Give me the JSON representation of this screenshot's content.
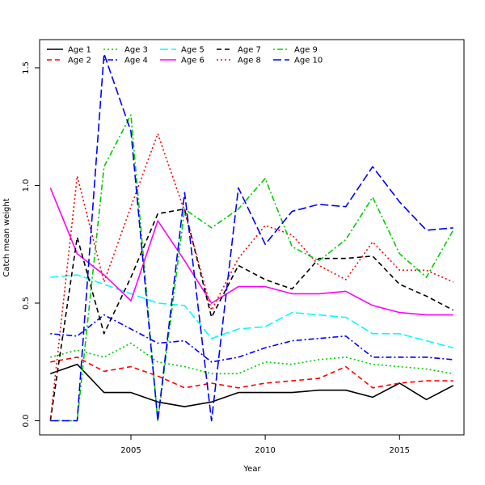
{
  "chart_data": {
    "type": "line",
    "xlabel": "Year",
    "ylabel": "Catch mean weight",
    "xlim": [
      2001.6,
      2017.4
    ],
    "ylim": [
      -0.06,
      1.62
    ],
    "xticks": [
      "2005",
      "2010",
      "2015"
    ],
    "yticks": [
      "0.0",
      "0.5",
      "1.0",
      "1.5"
    ],
    "grid": false,
    "legend_position": "top-left",
    "x": [
      2002,
      2003,
      2004,
      2005,
      2006,
      2007,
      2008,
      2009,
      2010,
      2011,
      2012,
      2013,
      2014,
      2015,
      2016,
      2017
    ],
    "series": [
      {
        "name": "Age 1",
        "color": "#000000",
        "dash": "solid",
        "values": [
          0.2,
          0.24,
          0.12,
          0.12,
          0.08,
          0.06,
          0.08,
          0.12,
          0.12,
          0.12,
          0.13,
          0.13,
          0.1,
          0.16,
          0.09,
          0.15
        ]
      },
      {
        "name": "Age 2",
        "color": "#ff0000",
        "dash": "dashed",
        "values": [
          0.25,
          0.27,
          0.21,
          0.23,
          0.19,
          0.14,
          0.16,
          0.14,
          0.16,
          0.17,
          0.18,
          0.23,
          0.14,
          0.16,
          0.17,
          0.17
        ]
      },
      {
        "name": "Age 3",
        "color": "#00cd00",
        "dash": "dotted",
        "values": [
          0.27,
          0.3,
          0.27,
          0.33,
          0.25,
          0.23,
          0.2,
          0.2,
          0.25,
          0.24,
          0.26,
          0.27,
          0.24,
          0.23,
          0.22,
          0.2
        ]
      },
      {
        "name": "Age 4",
        "color": "#0000ff",
        "dash": "dotdash",
        "values": [
          0.37,
          0.36,
          0.45,
          0.39,
          0.33,
          0.34,
          0.25,
          0.27,
          0.31,
          0.34,
          0.35,
          0.36,
          0.27,
          0.27,
          0.27,
          0.26
        ]
      },
      {
        "name": "Age 5",
        "color": "#00ffff",
        "dash": "longdash",
        "values": [
          0.61,
          0.62,
          0.58,
          0.54,
          0.5,
          0.49,
          0.35,
          0.39,
          0.4,
          0.46,
          0.45,
          0.44,
          0.37,
          0.37,
          0.34,
          0.31
        ]
      },
      {
        "name": "Age 6",
        "color": "#ff00ff",
        "dash": "solid",
        "values": [
          0.99,
          0.71,
          0.62,
          0.51,
          0.85,
          0.68,
          0.5,
          0.57,
          0.57,
          0.54,
          0.54,
          0.55,
          0.49,
          0.46,
          0.45,
          0.45
        ]
      },
      {
        "name": "Age 7",
        "color": "#000000",
        "dash": "dashed",
        "values": [
          0.0,
          0.78,
          0.37,
          0.61,
          0.88,
          0.9,
          0.44,
          0.66,
          0.6,
          0.56,
          0.69,
          0.69,
          0.7,
          0.58,
          0.53,
          0.47
        ]
      },
      {
        "name": "Age 8",
        "color": "#ff0000",
        "dash": "dotted",
        "values": [
          0.0,
          1.04,
          0.59,
          0.91,
          1.22,
          0.89,
          0.47,
          0.69,
          0.83,
          0.79,
          0.66,
          0.6,
          0.76,
          0.64,
          0.64,
          0.59
        ]
      },
      {
        "name": "Age 9",
        "color": "#00cd00",
        "dash": "dotdash",
        "values": [
          0.0,
          0.0,
          1.08,
          1.3,
          0.0,
          0.9,
          0.82,
          0.9,
          1.03,
          0.74,
          0.68,
          0.77,
          0.95,
          0.71,
          0.61,
          0.81
        ]
      },
      {
        "name": "Age 10",
        "color": "#0000ff",
        "dash": "longdash",
        "values": [
          0.0,
          0.0,
          1.56,
          1.23,
          0.0,
          0.97,
          0.0,
          0.99,
          0.75,
          0.89,
          0.92,
          0.91,
          1.08,
          0.93,
          0.81,
          0.82
        ]
      }
    ]
  }
}
